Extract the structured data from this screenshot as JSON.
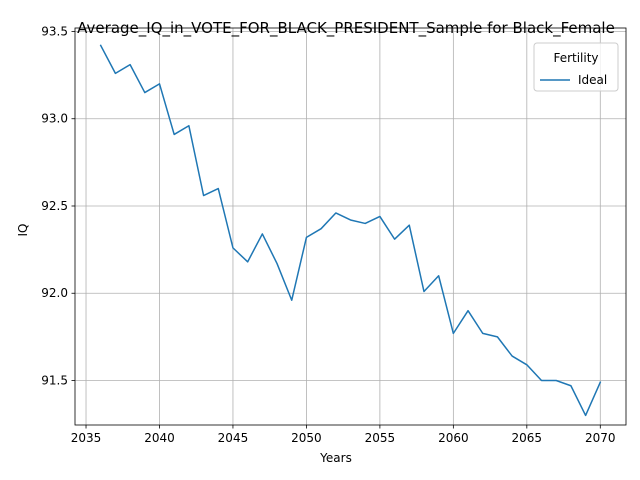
{
  "chart_data": {
    "type": "line",
    "title": "Average_IQ_in_VOTE_FOR_BLACK_PRESIDENT_Sample for Black_Female",
    "xlabel": "Years",
    "ylabel": "IQ",
    "xlim": [
      2034.25,
      2071.75
    ],
    "ylim": [
      91.245,
      93.52
    ],
    "grid": true,
    "legend": {
      "title": "Fertility",
      "placement": "top-right"
    },
    "x_ticks": [
      2035,
      2040,
      2045,
      2050,
      2055,
      2060,
      2065,
      2070
    ],
    "y_ticks": [
      91.5,
      92.0,
      92.5,
      93.0,
      93.5
    ],
    "series": [
      {
        "name": "Ideal",
        "color": "#1f77b4",
        "x": [
          2036,
          2037,
          2038,
          2039,
          2040,
          2041,
          2042,
          2043,
          2044,
          2045,
          2046,
          2047,
          2048,
          2049,
          2050,
          2051,
          2052,
          2053,
          2054,
          2055,
          2056,
          2057,
          2058,
          2059,
          2060,
          2061,
          2062,
          2063,
          2064,
          2065,
          2066,
          2067,
          2068,
          2069,
          2070
        ],
        "values": [
          93.42,
          93.26,
          93.31,
          93.15,
          93.2,
          92.91,
          92.96,
          92.56,
          92.6,
          92.26,
          92.18,
          92.34,
          92.17,
          91.96,
          92.32,
          92.37,
          92.46,
          92.42,
          92.4,
          92.44,
          92.31,
          92.39,
          92.01,
          92.1,
          91.77,
          91.9,
          91.77,
          91.75,
          91.64,
          91.59,
          91.5,
          91.5,
          91.47,
          91.3,
          91.49
        ]
      }
    ]
  }
}
